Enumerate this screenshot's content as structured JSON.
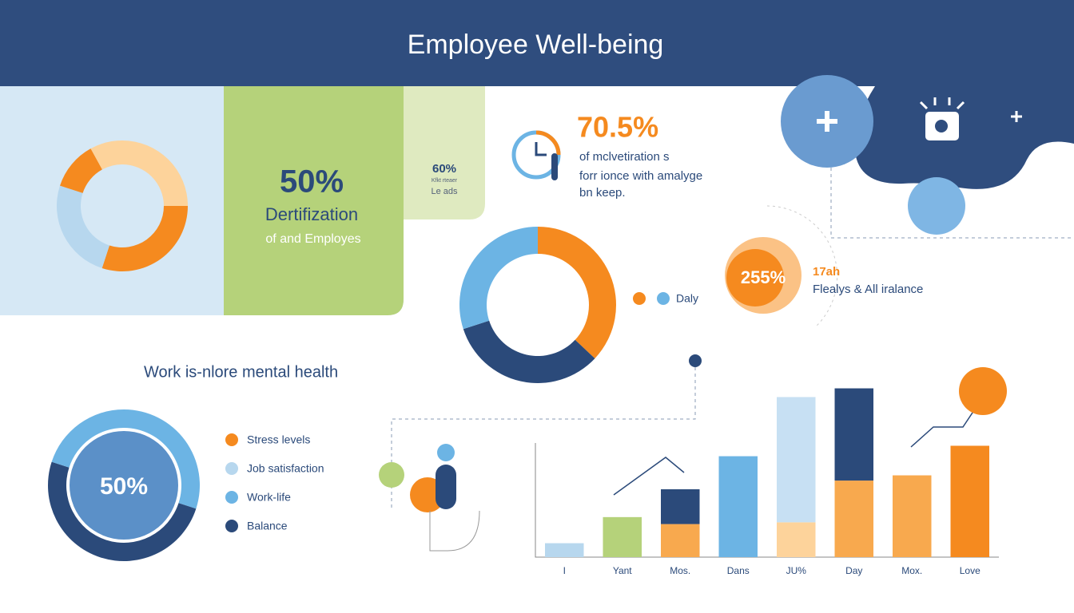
{
  "header": {
    "title": "Employee Well-being"
  },
  "card": {
    "value": "50%",
    "title": "Dertifization",
    "subtitle": "of and Employes"
  },
  "mini_card": {
    "value": "60%",
    "note": "Kfkt rteaer",
    "caption": "Le ads"
  },
  "stat": {
    "value": "70.5%",
    "lines": [
      "of mclvetiration s",
      "forr ionce with amalyge",
      "bn keep."
    ]
  },
  "badge": {
    "value": "255%",
    "title": "17ah",
    "caption": "Flealys & All iralance"
  },
  "section": {
    "title": "Work is-nlore mental health"
  },
  "legend": [
    {
      "label": "Stress levels",
      "color": "#f58a1f"
    },
    {
      "label": "Job satisfaction",
      "color": "#b7d7ee"
    },
    {
      "label": "Work-life",
      "color": "#6cb4e4"
    },
    {
      "label": "Balance",
      "color": "#2b4a7a"
    }
  ],
  "chart_data": [
    {
      "type": "pie",
      "values": [
        25,
        30,
        25,
        12,
        8
      ],
      "colors": [
        "#fdd39b",
        "#f58a1f",
        "#b7d7ee",
        "#f58a1f",
        "#fdd39b"
      ]
    },
    {
      "type": "pie",
      "values": [
        37,
        33,
        30
      ],
      "colors": [
        "#f58a1f",
        "#2b4a7a",
        "#6cb4e4"
      ],
      "legend_label": "Daly",
      "legend_colors": [
        "#f58a1f",
        "#6cb4e4"
      ]
    },
    {
      "type": "pie",
      "values": [
        30,
        50,
        20
      ],
      "colors": [
        "#6cb4e4",
        "#2b4a7a",
        "#6cb4e4"
      ],
      "center_label": "50%"
    },
    {
      "type": "bar",
      "categories": [
        "I",
        "Yant",
        "Mos.",
        "Dans",
        "JU%",
        "Day",
        "Mox.",
        "Love"
      ],
      "ylim": [
        0,
        100
      ],
      "series": [
        {
          "values": [
            8,
            23,
            19,
            58,
            20,
            44,
            47,
            64
          ],
          "colors": [
            "#b7d7ee",
            "#b5d27a",
            "#f8a94e",
            "#6cb4e4",
            "#fdd39b",
            "#f8a94e",
            "#f8a94e",
            "#f58a1f"
          ]
        },
        {
          "values": [
            null,
            null,
            20,
            null,
            72,
            53,
            null,
            null
          ],
          "colors": [
            null,
            null,
            "#2b4a7a",
            null,
            "#c7e0f3",
            "#2b4a7a",
            null,
            null
          ]
        }
      ]
    }
  ]
}
